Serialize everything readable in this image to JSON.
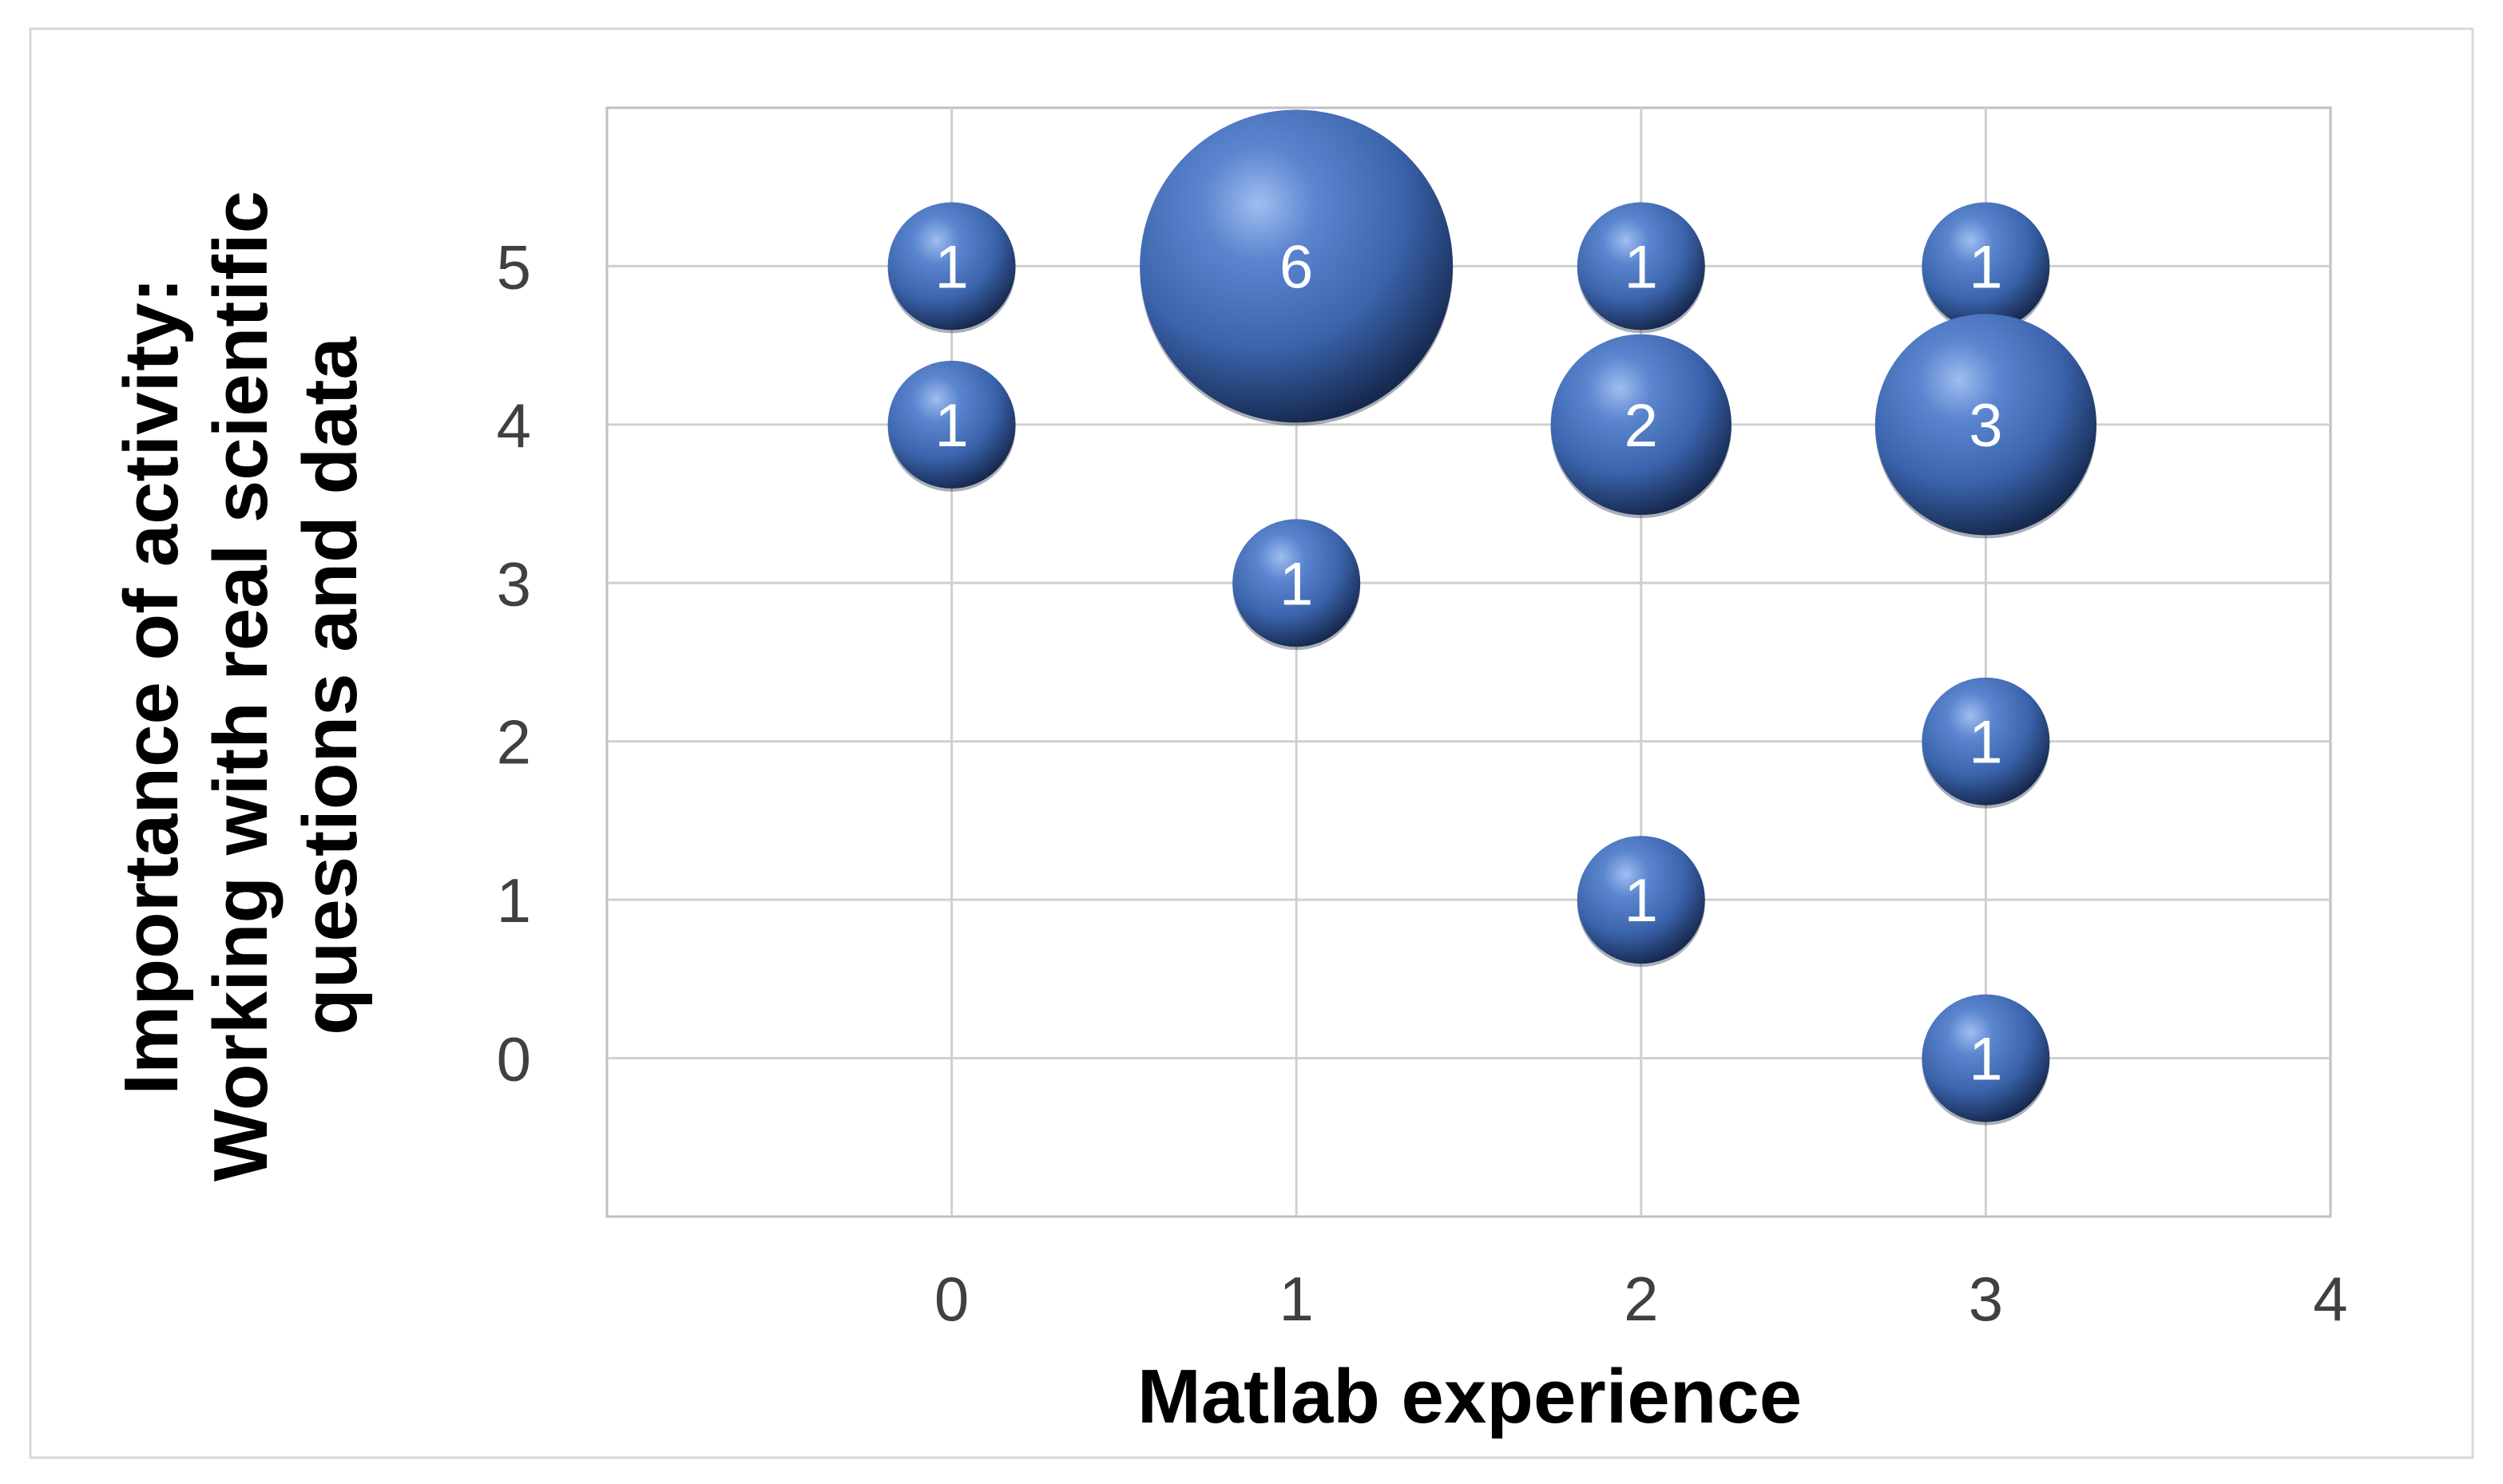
{
  "chart_data": {
    "type": "scatter",
    "subtype": "bubble",
    "title": "",
    "xlabel": "Matlab experience",
    "ylabel_lines": [
      "Importance of activity:",
      "Working with real scientific",
      "questions and data"
    ],
    "xlim": [
      -1,
      4
    ],
    "ylim": [
      -1,
      6
    ],
    "x_ticks": [
      0,
      1,
      2,
      3,
      4
    ],
    "y_ticks": [
      0,
      1,
      2,
      3,
      4,
      5
    ],
    "grid": true,
    "legend": "none",
    "bubble_color": "#3f67ad",
    "points": [
      {
        "x": 0,
        "y": 5,
        "size": 1
      },
      {
        "x": 0,
        "y": 4,
        "size": 1
      },
      {
        "x": 1,
        "y": 5,
        "size": 6
      },
      {
        "x": 1,
        "y": 3,
        "size": 1
      },
      {
        "x": 2,
        "y": 5,
        "size": 1
      },
      {
        "x": 2,
        "y": 4,
        "size": 2
      },
      {
        "x": 2,
        "y": 1,
        "size": 1
      },
      {
        "x": 3,
        "y": 5,
        "size": 1
      },
      {
        "x": 3,
        "y": 4,
        "size": 3
      },
      {
        "x": 3,
        "y": 2,
        "size": 1
      },
      {
        "x": 3,
        "y": 0,
        "size": 1
      }
    ]
  }
}
